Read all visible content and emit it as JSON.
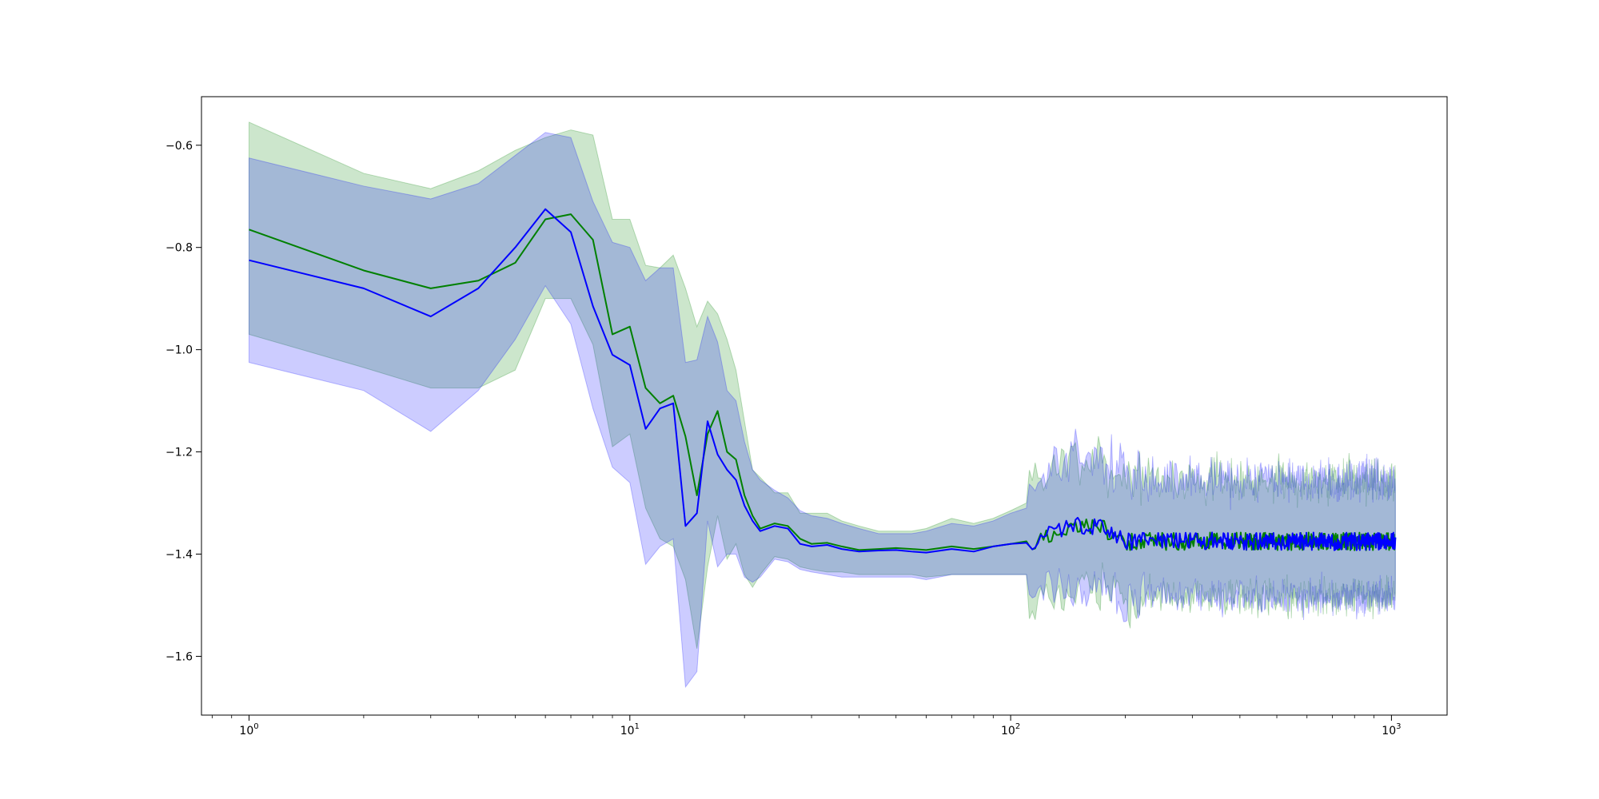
{
  "chart_data": {
    "type": "line",
    "title": "",
    "xlabel": "",
    "ylabel": "",
    "xscale": "log",
    "xlim": [
      0.75,
      1400
    ],
    "ylim": [
      -1.715,
      -0.505
    ],
    "grid": false,
    "legend": "none",
    "x_ticks": [
      {
        "value": 1,
        "base": "10",
        "exp": "0"
      },
      {
        "value": 10,
        "base": "10",
        "exp": "1"
      },
      {
        "value": 100,
        "base": "10",
        "exp": "2"
      },
      {
        "value": 1000,
        "base": "10",
        "exp": "3"
      }
    ],
    "y_ticks": [
      {
        "value": -0.6,
        "label": "−0.6"
      },
      {
        "value": -0.8,
        "label": "−0.8"
      },
      {
        "value": -1.0,
        "label": "−1.0"
      },
      {
        "value": -1.2,
        "label": "−1.2"
      },
      {
        "value": -1.4,
        "label": "−1.4"
      },
      {
        "value": -1.6,
        "label": "−1.6"
      }
    ],
    "series": [
      {
        "color": "#008000",
        "band_color": "#008000",
        "band_opacity": 0.2,
        "tail_seed": 7,
        "x": [
          1,
          2,
          3,
          4,
          5,
          6,
          7,
          8,
          9,
          10,
          11,
          12,
          13,
          14,
          15,
          16,
          17,
          18,
          19,
          20,
          21,
          22,
          24,
          26,
          28,
          30,
          33,
          36,
          40,
          45,
          50,
          55,
          60,
          70,
          80,
          90,
          100,
          110
        ],
        "y": [
          -0.765,
          -0.845,
          -0.88,
          -0.865,
          -0.83,
          -0.745,
          -0.735,
          -0.785,
          -0.97,
          -0.955,
          -1.075,
          -1.105,
          -1.09,
          -1.17,
          -1.285,
          -1.165,
          -1.12,
          -1.2,
          -1.215,
          -1.285,
          -1.325,
          -1.35,
          -1.34,
          -1.345,
          -1.37,
          -1.38,
          -1.378,
          -1.385,
          -1.392,
          -1.39,
          -1.388,
          -1.39,
          -1.392,
          -1.385,
          -1.39,
          -1.385,
          -1.38,
          -1.375
        ],
        "upper": [
          -0.555,
          -0.655,
          -0.685,
          -0.65,
          -0.61,
          -0.585,
          -0.57,
          -0.58,
          -0.745,
          -0.745,
          -0.835,
          -0.84,
          -0.815,
          -0.88,
          -0.955,
          -0.905,
          -0.93,
          -0.98,
          -1.04,
          -1.14,
          -1.235,
          -1.25,
          -1.28,
          -1.28,
          -1.32,
          -1.32,
          -1.32,
          -1.335,
          -1.345,
          -1.355,
          -1.355,
          -1.355,
          -1.35,
          -1.33,
          -1.34,
          -1.33,
          -1.315,
          -1.3
        ],
        "lower": [
          -0.97,
          -1.035,
          -1.075,
          -1.075,
          -1.04,
          -0.9,
          -0.9,
          -0.99,
          -1.19,
          -1.165,
          -1.31,
          -1.37,
          -1.385,
          -1.45,
          -1.585,
          -1.425,
          -1.325,
          -1.41,
          -1.38,
          -1.44,
          -1.465,
          -1.44,
          -1.405,
          -1.41,
          -1.425,
          -1.43,
          -1.435,
          -1.435,
          -1.44,
          -1.44,
          -1.44,
          -1.44,
          -1.445,
          -1.44,
          -1.44,
          -1.44,
          -1.44,
          -1.44
        ]
      },
      {
        "color": "#0000ff",
        "band_color": "#0000ff",
        "band_opacity": 0.2,
        "tail_seed": 13,
        "x": [
          1,
          2,
          3,
          4,
          5,
          6,
          7,
          8,
          9,
          10,
          11,
          12,
          13,
          14,
          15,
          16,
          17,
          18,
          19,
          20,
          21,
          22,
          24,
          26,
          28,
          30,
          33,
          36,
          40,
          45,
          50,
          55,
          60,
          70,
          80,
          90,
          100,
          110
        ],
        "y": [
          -0.825,
          -0.88,
          -0.935,
          -0.88,
          -0.8,
          -0.725,
          -0.77,
          -0.915,
          -1.01,
          -1.03,
          -1.155,
          -1.115,
          -1.105,
          -1.345,
          -1.32,
          -1.14,
          -1.205,
          -1.235,
          -1.255,
          -1.305,
          -1.335,
          -1.355,
          -1.345,
          -1.35,
          -1.38,
          -1.385,
          -1.382,
          -1.39,
          -1.395,
          -1.393,
          -1.392,
          -1.395,
          -1.397,
          -1.39,
          -1.395,
          -1.385,
          -1.38,
          -1.378
        ],
        "upper": [
          -0.625,
          -0.68,
          -0.705,
          -0.675,
          -0.62,
          -0.575,
          -0.585,
          -0.71,
          -0.79,
          -0.8,
          -0.865,
          -0.84,
          -0.84,
          -1.025,
          -1.02,
          -0.935,
          -0.985,
          -1.08,
          -1.1,
          -1.18,
          -1.235,
          -1.255,
          -1.275,
          -1.29,
          -1.315,
          -1.325,
          -1.33,
          -1.34,
          -1.35,
          -1.36,
          -1.36,
          -1.36,
          -1.355,
          -1.34,
          -1.345,
          -1.335,
          -1.32,
          -1.31
        ],
        "lower": [
          -1.025,
          -1.08,
          -1.16,
          -1.08,
          -0.98,
          -0.875,
          -0.95,
          -1.115,
          -1.23,
          -1.26,
          -1.42,
          -1.385,
          -1.37,
          -1.66,
          -1.63,
          -1.335,
          -1.425,
          -1.4,
          -1.4,
          -1.445,
          -1.455,
          -1.445,
          -1.41,
          -1.415,
          -1.43,
          -1.435,
          -1.44,
          -1.445,
          -1.445,
          -1.445,
          -1.445,
          -1.445,
          -1.45,
          -1.44,
          -1.44,
          -1.44,
          -1.44,
          -1.44
        ]
      }
    ]
  }
}
